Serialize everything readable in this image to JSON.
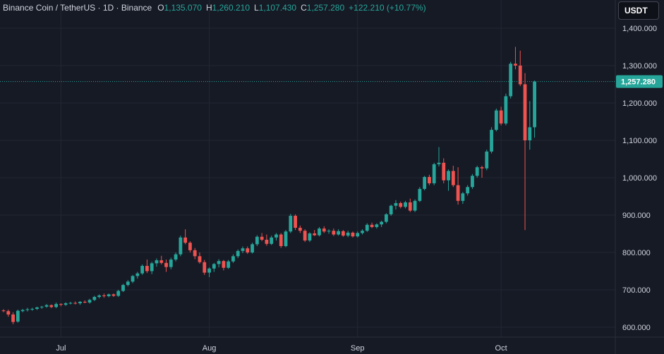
{
  "header": {
    "symbol": "Binance Coin / TetherUS · 1D · Binance",
    "open_label": "O",
    "open": "1,135.070",
    "high_label": "H",
    "high": "1,260.210",
    "low_label": "L",
    "low": "1,107.430",
    "close_label": "C",
    "close": "1,257.280",
    "change": "+122.210 (+10.77%)"
  },
  "currency_button": "USDT",
  "colors": {
    "up": "#26a69a",
    "down": "#ef5350",
    "background": "#161a25",
    "grid": "#232733",
    "axis_text": "#d1d4dc",
    "price_line": "#26a69a"
  },
  "chart_data": {
    "type": "candlestick",
    "title": "Binance Coin / TetherUS · 1D · Binance",
    "ylim": [
      580,
      1450
    ],
    "y_ticks": [
      600,
      700,
      800,
      900,
      1000,
      1100,
      1200,
      1300,
      1400
    ],
    "y_tick_labels": [
      "600.000",
      "700.000",
      "800.000",
      "900.000",
      "1,000.000",
      "1,100.000",
      "1,200.000",
      "1,300.000",
      "1,400.000"
    ],
    "x_ticks": [
      {
        "label": "Jul",
        "index": 12
      },
      {
        "label": "Aug",
        "index": 43
      },
      {
        "label": "Sep",
        "index": 74
      },
      {
        "label": "Oct",
        "index": 104
      }
    ],
    "last_price": 1257.28,
    "last_price_label": "1,257.280",
    "grid": true,
    "candles": [
      [
        645,
        648,
        640,
        643
      ],
      [
        643,
        647,
        628,
        634
      ],
      [
        634,
        640,
        608,
        614
      ],
      [
        615,
        647,
        612,
        644
      ],
      [
        643,
        649,
        640,
        646
      ],
      [
        646,
        652,
        642,
        648
      ],
      [
        648,
        652,
        644,
        649
      ],
      [
        649,
        655,
        646,
        653
      ],
      [
        653,
        657,
        649,
        655
      ],
      [
        655,
        662,
        652,
        659
      ],
      [
        659,
        661,
        651,
        654
      ],
      [
        654,
        666,
        651,
        662
      ],
      [
        662,
        664,
        656,
        660
      ],
      [
        660,
        667,
        657,
        664
      ],
      [
        664,
        668,
        661,
        665
      ],
      [
        665,
        669,
        661,
        664
      ],
      [
        664,
        670,
        660,
        668
      ],
      [
        668,
        672,
        664,
        666
      ],
      [
        666,
        676,
        663,
        673
      ],
      [
        673,
        684,
        670,
        681
      ],
      [
        681,
        688,
        677,
        685
      ],
      [
        685,
        690,
        679,
        683
      ],
      [
        683,
        690,
        680,
        688
      ],
      [
        688,
        690,
        681,
        684
      ],
      [
        684,
        700,
        681,
        697
      ],
      [
        697,
        716,
        694,
        713
      ],
      [
        713,
        726,
        709,
        722
      ],
      [
        722,
        740,
        718,
        737
      ],
      [
        737,
        748,
        730,
        744
      ],
      [
        744,
        768,
        740,
        764
      ],
      [
        764,
        781,
        745,
        750
      ],
      [
        750,
        775,
        742,
        771
      ],
      [
        771,
        784,
        762,
        779
      ],
      [
        779,
        791,
        768,
        772
      ],
      [
        772,
        781,
        748,
        761
      ],
      [
        761,
        786,
        755,
        781
      ],
      [
        781,
        800,
        776,
        795
      ],
      [
        795,
        845,
        790,
        840
      ],
      [
        840,
        862,
        822,
        826
      ],
      [
        826,
        830,
        800,
        806
      ],
      [
        806,
        812,
        782,
        790
      ],
      [
        790,
        800,
        770,
        774
      ],
      [
        774,
        780,
        740,
        746
      ],
      [
        746,
        760,
        734,
        757
      ],
      [
        757,
        772,
        748,
        769
      ],
      [
        769,
        782,
        760,
        777
      ],
      [
        777,
        780,
        752,
        759
      ],
      [
        759,
        780,
        756,
        776
      ],
      [
        776,
        795,
        772,
        790
      ],
      [
        790,
        808,
        785,
        804
      ],
      [
        804,
        816,
        798,
        811
      ],
      [
        811,
        816,
        796,
        800
      ],
      [
        800,
        826,
        797,
        822
      ],
      [
        822,
        846,
        817,
        842
      ],
      [
        842,
        852,
        830,
        834
      ],
      [
        834,
        848,
        818,
        823
      ],
      [
        823,
        845,
        820,
        840
      ],
      [
        840,
        852,
        832,
        848
      ],
      [
        848,
        852,
        812,
        817
      ],
      [
        817,
        860,
        814,
        856
      ],
      [
        856,
        903,
        852,
        898
      ],
      [
        898,
        902,
        860,
        866
      ],
      [
        866,
        872,
        852,
        858
      ],
      [
        858,
        862,
        828,
        832
      ],
      [
        832,
        854,
        828,
        851
      ],
      [
        851,
        860,
        844,
        846
      ],
      [
        846,
        868,
        843,
        864
      ],
      [
        864,
        870,
        852,
        856
      ],
      [
        856,
        862,
        850,
        858
      ],
      [
        858,
        864,
        844,
        848
      ],
      [
        848,
        862,
        845,
        857
      ],
      [
        857,
        860,
        842,
        845
      ],
      [
        845,
        858,
        841,
        853
      ],
      [
        853,
        856,
        840,
        843
      ],
      [
        843,
        856,
        840,
        852
      ],
      [
        852,
        862,
        848,
        858
      ],
      [
        858,
        878,
        855,
        874
      ],
      [
        874,
        880,
        865,
        868
      ],
      [
        868,
        878,
        864,
        875
      ],
      [
        875,
        885,
        868,
        882
      ],
      [
        882,
        905,
        878,
        902
      ],
      [
        902,
        928,
        898,
        925
      ],
      [
        925,
        940,
        915,
        932
      ],
      [
        932,
        936,
        918,
        922
      ],
      [
        922,
        938,
        918,
        934
      ],
      [
        934,
        944,
        908,
        912
      ],
      [
        912,
        942,
        908,
        938
      ],
      [
        938,
        975,
        935,
        970
      ],
      [
        970,
        1005,
        966,
        1002
      ],
      [
        1002,
        1008,
        980,
        985
      ],
      [
        985,
        1040,
        980,
        1036
      ],
      [
        1036,
        1082,
        1030,
        1040
      ],
      [
        1040,
        1052,
        985,
        993
      ],
      [
        993,
        1022,
        965,
        1018
      ],
      [
        1018,
        1032,
        975,
        980
      ],
      [
        980,
        1028,
        928,
        938
      ],
      [
        938,
        962,
        930,
        958
      ],
      [
        958,
        980,
        952,
        975
      ],
      [
        975,
        1010,
        970,
        1005
      ],
      [
        1005,
        1032,
        1000,
        1028
      ],
      [
        1028,
        1032,
        1000,
        1025
      ],
      [
        1025,
        1075,
        1020,
        1070
      ],
      [
        1070,
        1135,
        1065,
        1128
      ],
      [
        1128,
        1185,
        1124,
        1180
      ],
      [
        1180,
        1190,
        1140,
        1145
      ],
      [
        1145,
        1225,
        1140,
        1218
      ],
      [
        1218,
        1310,
        1212,
        1305
      ],
      [
        1305,
        1350,
        1290,
        1300
      ],
      [
        1300,
        1340,
        1245,
        1250
      ],
      [
        1250,
        1280,
        860,
        1100
      ],
      [
        1100,
        1205,
        1075,
        1135
      ],
      [
        1135,
        1260,
        1107,
        1257
      ]
    ]
  }
}
